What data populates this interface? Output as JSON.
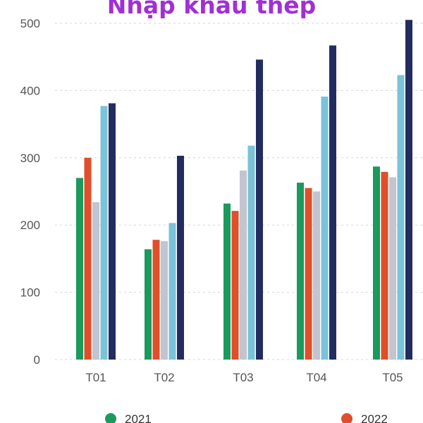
{
  "chart_data": {
    "type": "bar",
    "title": "Nhập khẩu thép",
    "title_color": "#a12fd6",
    "categories": [
      "T01",
      "T02",
      "T03",
      "T04",
      "T05"
    ],
    "series": [
      {
        "name": "2021",
        "color": "#1a9a5c",
        "values": [
          270,
          164,
          232,
          263,
          287
        ]
      },
      {
        "name": "2022",
        "color": "#e04e2a",
        "values": [
          300,
          178,
          221,
          255,
          279
        ]
      },
      {
        "color": "#c2c4d0",
        "values": [
          234,
          176,
          281,
          250,
          271
        ]
      },
      {
        "color": "#7ac3d9",
        "values": [
          377,
          203,
          318,
          391,
          423
        ]
      },
      {
        "color": "#232c5e",
        "values": [
          381,
          303,
          446,
          467,
          505
        ]
      }
    ],
    "yticks": [
      0,
      100,
      200,
      300,
      400,
      500
    ],
    "ylim": [
      0,
      500
    ],
    "grid": true,
    "legend": "bottom"
  }
}
